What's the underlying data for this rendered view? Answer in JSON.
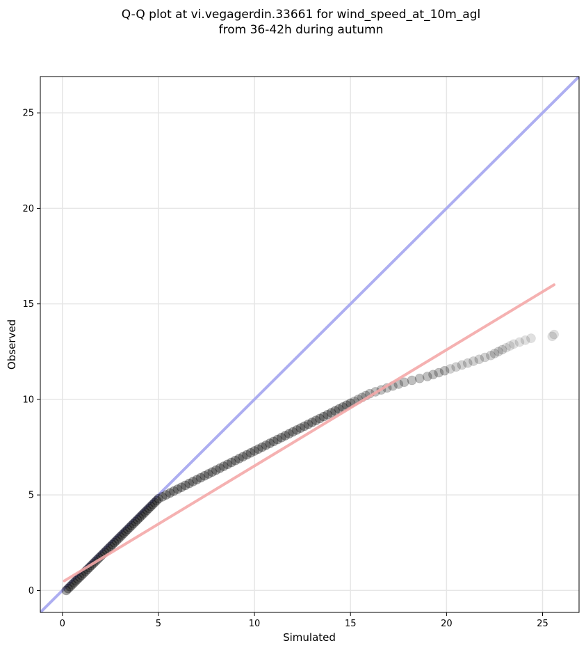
{
  "chart_data": {
    "type": "scatter",
    "title_line1": "Q-Q plot at vi.vegagerdin.33661 for wind_speed_at_10m_agl",
    "title_line2": "from 36-42h during autumn",
    "xlabel": "Simulated",
    "ylabel": "Observed",
    "xlim": [
      -1.15,
      26.9
    ],
    "ylim": [
      -1.15,
      26.9
    ],
    "xticks": [
      0,
      5,
      10,
      15,
      20,
      25
    ],
    "yticks": [
      0,
      5,
      10,
      15,
      20,
      25
    ],
    "xtick_labels": [
      "0",
      "5",
      "10",
      "15",
      "20",
      "25"
    ],
    "ytick_labels": [
      "0",
      "5",
      "10",
      "15",
      "20",
      "25"
    ],
    "grid": true,
    "colors": {
      "points": "#000000",
      "identity_line": "#a9aaf0",
      "fit_line": "#f4a8a8"
    },
    "identity_line": {
      "x": [
        -1.15,
        26.9
      ],
      "y": [
        -1.15,
        26.9
      ]
    },
    "fit_line": {
      "x": [
        0.1,
        25.6
      ],
      "y": [
        0.5,
        16.0
      ]
    },
    "points": {
      "x": [
        0.2,
        0.3,
        0.4,
        0.5,
        0.6,
        0.7,
        0.8,
        0.9,
        1.0,
        1.1,
        1.2,
        1.3,
        1.4,
        1.5,
        1.6,
        1.7,
        1.8,
        1.9,
        2.0,
        2.1,
        2.2,
        2.3,
        2.4,
        2.5,
        2.6,
        2.7,
        2.8,
        2.9,
        3.0,
        3.1,
        3.2,
        3.3,
        3.4,
        3.5,
        3.6,
        3.7,
        3.8,
        3.9,
        4.0,
        4.1,
        4.2,
        4.3,
        4.4,
        4.5,
        4.6,
        4.7,
        4.8,
        4.9,
        5.0,
        5.2,
        5.4,
        5.6,
        5.8,
        6.0,
        6.2,
        6.4,
        6.6,
        6.8,
        7.0,
        7.2,
        7.4,
        7.6,
        7.8,
        8.0,
        8.2,
        8.4,
        8.6,
        8.8,
        9.0,
        9.2,
        9.4,
        9.6,
        9.8,
        10.0,
        10.2,
        10.4,
        10.6,
        10.8,
        11.0,
        11.2,
        11.4,
        11.6,
        11.8,
        12.0,
        12.2,
        12.4,
        12.6,
        12.8,
        13.0,
        13.2,
        13.4,
        13.6,
        13.8,
        14.0,
        14.2,
        14.4,
        14.6,
        14.8,
        15.0,
        15.2,
        15.4,
        15.6,
        15.8,
        16.0,
        16.3,
        16.6,
        16.9,
        17.2,
        17.5,
        17.8,
        18.2,
        18.6,
        19.0,
        19.3,
        19.6,
        19.9,
        20.2,
        20.5,
        20.8,
        21.1,
        21.4,
        21.7,
        22.0,
        22.3,
        22.5,
        22.7,
        22.9,
        23.1,
        23.3,
        23.5,
        23.8,
        24.1,
        24.4,
        25.5,
        25.6
      ],
      "y": [
        0.0,
        0.1,
        0.2,
        0.3,
        0.4,
        0.5,
        0.6,
        0.7,
        0.8,
        0.9,
        1.0,
        1.1,
        1.2,
        1.3,
        1.4,
        1.5,
        1.6,
        1.7,
        1.8,
        1.9,
        2.0,
        2.1,
        2.2,
        2.3,
        2.4,
        2.5,
        2.6,
        2.7,
        2.8,
        2.9,
        3.0,
        3.1,
        3.2,
        3.3,
        3.4,
        3.5,
        3.6,
        3.7,
        3.8,
        3.9,
        4.0,
        4.1,
        4.2,
        4.3,
        4.4,
        4.5,
        4.6,
        4.7,
        4.8,
        4.9,
        5.0,
        5.1,
        5.2,
        5.3,
        5.4,
        5.5,
        5.6,
        5.7,
        5.8,
        5.9,
        6.0,
        6.1,
        6.2,
        6.3,
        6.4,
        6.5,
        6.6,
        6.7,
        6.8,
        6.9,
        7.0,
        7.1,
        7.2,
        7.3,
        7.4,
        7.5,
        7.6,
        7.7,
        7.8,
        7.9,
        8.0,
        8.1,
        8.2,
        8.3,
        8.4,
        8.5,
        8.6,
        8.7,
        8.8,
        8.9,
        9.0,
        9.1,
        9.2,
        9.3,
        9.4,
        9.5,
        9.6,
        9.7,
        9.8,
        9.9,
        10.0,
        10.1,
        10.2,
        10.3,
        10.4,
        10.5,
        10.6,
        10.7,
        10.8,
        10.9,
        11.0,
        11.1,
        11.2,
        11.3,
        11.4,
        11.5,
        11.6,
        11.7,
        11.8,
        11.9,
        12.0,
        12.1,
        12.2,
        12.3,
        12.4,
        12.5,
        12.6,
        12.7,
        12.8,
        12.9,
        13.0,
        13.1,
        13.2,
        13.3,
        13.4
      ]
    }
  }
}
